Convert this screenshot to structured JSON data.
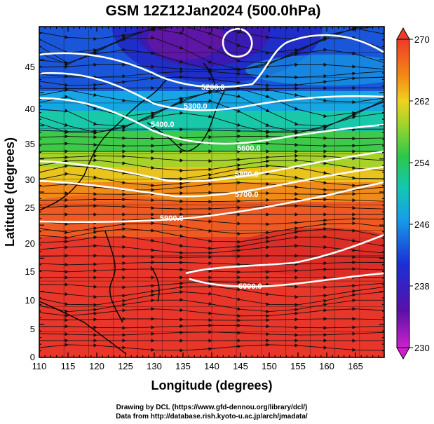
{
  "title": "GSM 12Z12Jan2024 (500.0hPa)",
  "axes": {
    "xlabel": "Longitude (degrees)",
    "ylabel": "Latitude  (degrees)",
    "xticks": [
      "110",
      "115",
      "120",
      "125",
      "130",
      "135",
      "140",
      "145",
      "150",
      "155",
      "160",
      "165"
    ],
    "yticks": [
      "0",
      "5",
      "10",
      "15",
      "20",
      "25",
      "30",
      "35",
      "40",
      "45"
    ],
    "xrange": [
      110,
      170
    ],
    "yrange": [
      0,
      50
    ]
  },
  "colorbar": {
    "labels": [
      "270",
      "262",
      "254",
      "246",
      "238",
      "230"
    ],
    "range": [
      230,
      270
    ]
  },
  "contours": [
    {
      "label": "5200.0"
    },
    {
      "label": "5300.0"
    },
    {
      "label": "5400.0"
    },
    {
      "label": "5600.0"
    },
    {
      "label": "5800.0"
    },
    {
      "label": "5700.0"
    },
    {
      "label": "5900.0"
    },
    {
      "label": "6000.0"
    }
  ],
  "credits": {
    "line1": "Drawing by DCL (https://www.gfd-dennou.org/library/dcl/)",
    "line2": "Data from http://database.rish.kyoto-u.ac.jp/arch/jmadata/"
  }
}
